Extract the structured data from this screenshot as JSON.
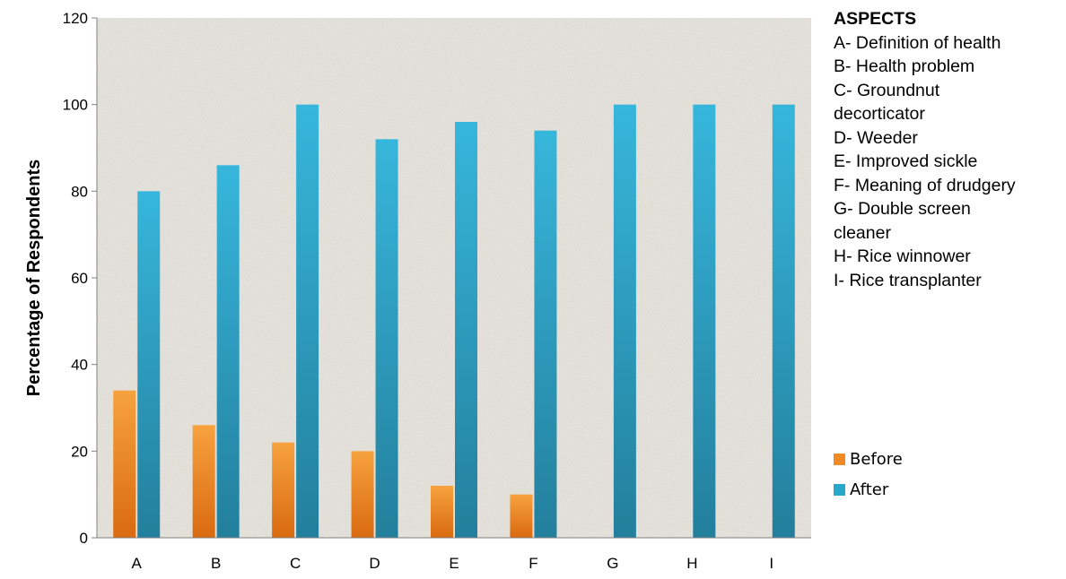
{
  "chart_data": {
    "type": "bar",
    "title": "",
    "xlabel": "",
    "ylabel": "Percentage of Respondents",
    "ylim": [
      0,
      120
    ],
    "yticks": [
      0,
      20,
      40,
      60,
      80,
      100,
      120
    ],
    "categories": [
      "A",
      "B",
      "C",
      "D",
      "E",
      "F",
      "G",
      "H",
      "I"
    ],
    "series": [
      {
        "name": "Before",
        "color": "#f08a24",
        "values": [
          34,
          26,
          22,
          20,
          12,
          10,
          0,
          0,
          0
        ]
      },
      {
        "name": "After",
        "color": "#2aa8cc",
        "values": [
          80,
          86,
          100,
          92,
          96,
          94,
          100,
          100,
          100
        ]
      }
    ],
    "legend_position": "right"
  },
  "aspects": {
    "title": "ASPECTS",
    "lines": [
      "A- Definition of health",
      "B- Health problem",
      "C- Groundnut",
      "decorticator",
      "D- Weeder",
      "E- Improved sickle",
      "F- Meaning of drudgery",
      "G- Double screen",
      "cleaner",
      "H- Rice winnower",
      "I- Rice transplanter"
    ]
  }
}
